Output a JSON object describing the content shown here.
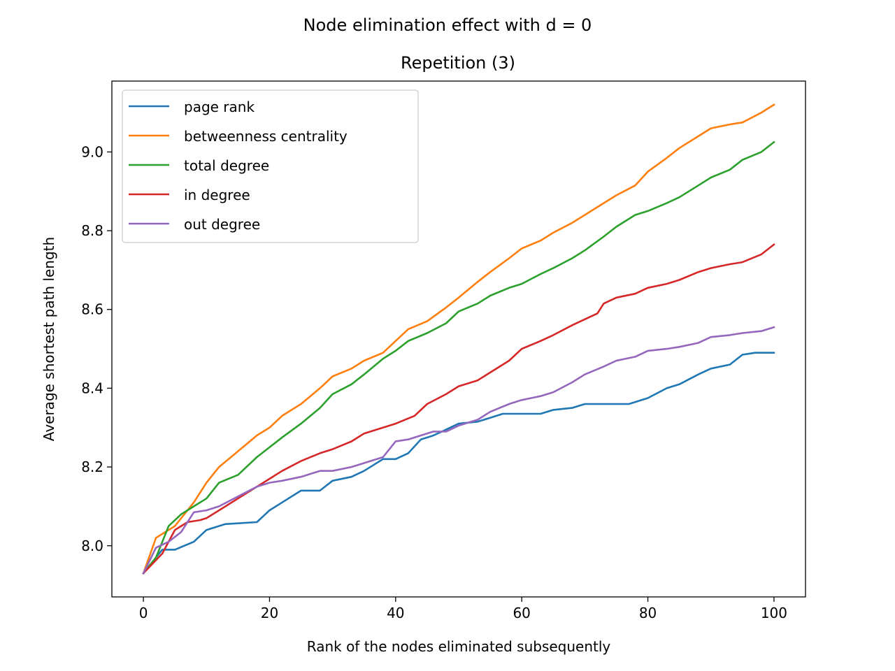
{
  "chart_data": {
    "type": "line",
    "suptitle": "Node elimination effect with d = 0",
    "title": "Repetition (3)",
    "xlabel": "Rank of the nodes eliminated subsequently",
    "ylabel": "Average shortest path length",
    "xlim": [
      -5,
      105
    ],
    "ylim": [
      7.87,
      9.18
    ],
    "xticks": [
      0,
      20,
      40,
      60,
      80,
      100
    ],
    "xtick_labels": [
      "0",
      "20",
      "40",
      "60",
      "80",
      "100"
    ],
    "yticks": [
      8.0,
      8.2,
      8.4,
      8.6,
      8.8,
      9.0
    ],
    "ytick_labels": [
      "8.0",
      "8.2",
      "8.4",
      "8.6",
      "8.8",
      "9.0"
    ],
    "grid": false,
    "legend_position": "upper left",
    "series_anchors_note_x": [
      0,
      5,
      10,
      15,
      20,
      25,
      30,
      35,
      40,
      45,
      50,
      55,
      60,
      65,
      70,
      75,
      80,
      85,
      90,
      95,
      100
    ],
    "series": [
      {
        "name": "page rank",
        "color": "#1f77b4",
        "x": [
          0,
          3,
          5,
          8,
          10,
          13,
          18,
          20,
          22,
          25,
          28,
          30,
          33,
          35,
          38,
          40,
          42,
          44,
          46,
          48,
          50,
          53,
          55,
          57,
          60,
          63,
          65,
          68,
          70,
          73,
          75,
          77,
          80,
          83,
          85,
          88,
          90,
          93,
          95,
          97,
          100
        ],
        "y": [
          7.93,
          7.99,
          7.99,
          8.01,
          8.04,
          8.055,
          8.06,
          8.09,
          8.11,
          8.14,
          8.14,
          8.165,
          8.175,
          8.19,
          8.22,
          8.22,
          8.235,
          8.27,
          8.28,
          8.295,
          8.31,
          8.315,
          8.325,
          8.335,
          8.335,
          8.335,
          8.345,
          8.35,
          8.36,
          8.36,
          8.36,
          8.36,
          8.375,
          8.4,
          8.41,
          8.435,
          8.45,
          8.46,
          8.485,
          8.49,
          8.49
        ]
      },
      {
        "name": "betweenness centrality",
        "color": "#ff7f0e",
        "x": [
          0,
          2,
          4,
          5,
          8,
          10,
          12,
          15,
          18,
          20,
          22,
          25,
          28,
          30,
          33,
          35,
          38,
          40,
          42,
          45,
          48,
          50,
          53,
          55,
          58,
          60,
          63,
          65,
          68,
          70,
          73,
          75,
          78,
          80,
          83,
          85,
          88,
          90,
          93,
          95,
          98,
          100
        ],
        "y": [
          7.93,
          8.02,
          8.04,
          8.05,
          8.11,
          8.16,
          8.2,
          8.24,
          8.28,
          8.3,
          8.33,
          8.36,
          8.4,
          8.43,
          8.45,
          8.47,
          8.49,
          8.52,
          8.55,
          8.57,
          8.605,
          8.63,
          8.67,
          8.695,
          8.73,
          8.755,
          8.775,
          8.795,
          8.82,
          8.84,
          8.87,
          8.89,
          8.915,
          8.95,
          8.985,
          9.01,
          9.04,
          9.06,
          9.07,
          9.075,
          9.1,
          9.12
        ]
      },
      {
        "name": "total degree",
        "color": "#2ca02c",
        "x": [
          0,
          2,
          4,
          6,
          8,
          10,
          12,
          15,
          18,
          20,
          22,
          25,
          28,
          30,
          33,
          35,
          38,
          40,
          42,
          45,
          48,
          50,
          53,
          55,
          58,
          60,
          63,
          65,
          68,
          70,
          73,
          75,
          78,
          80,
          83,
          85,
          88,
          90,
          93,
          95,
          98,
          100
        ],
        "y": [
          7.93,
          7.97,
          8.05,
          8.08,
          8.1,
          8.12,
          8.16,
          8.18,
          8.225,
          8.25,
          8.275,
          8.31,
          8.35,
          8.385,
          8.41,
          8.435,
          8.475,
          8.495,
          8.52,
          8.54,
          8.565,
          8.595,
          8.615,
          8.635,
          8.655,
          8.665,
          8.69,
          8.705,
          8.73,
          8.75,
          8.785,
          8.81,
          8.84,
          8.85,
          8.87,
          8.885,
          8.915,
          8.935,
          8.955,
          8.98,
          9.0,
          9.025
        ]
      },
      {
        "name": "in degree",
        "color": "#d62728",
        "x": [
          0,
          3,
          5,
          7,
          9,
          10,
          12,
          15,
          18,
          20,
          22,
          25,
          28,
          30,
          33,
          35,
          38,
          40,
          43,
          45,
          48,
          50,
          53,
          55,
          58,
          60,
          63,
          65,
          68,
          70,
          72,
          73,
          75,
          78,
          80,
          83,
          85,
          88,
          90,
          93,
          95,
          98,
          100
        ],
        "y": [
          7.93,
          7.98,
          8.04,
          8.06,
          8.065,
          8.07,
          8.09,
          8.12,
          8.15,
          8.17,
          8.19,
          8.215,
          8.235,
          8.245,
          8.265,
          8.285,
          8.3,
          8.31,
          8.33,
          8.36,
          8.385,
          8.405,
          8.42,
          8.44,
          8.47,
          8.5,
          8.52,
          8.535,
          8.56,
          8.575,
          8.59,
          8.615,
          8.63,
          8.64,
          8.655,
          8.665,
          8.675,
          8.695,
          8.705,
          8.715,
          8.72,
          8.74,
          8.765
        ]
      },
      {
        "name": "out degree",
        "color": "#9467bd",
        "x": [
          0,
          2,
          4,
          6,
          8,
          10,
          12,
          15,
          18,
          20,
          22,
          25,
          28,
          30,
          33,
          35,
          38,
          40,
          42,
          44,
          46,
          48,
          50,
          53,
          55,
          58,
          60,
          63,
          65,
          68,
          70,
          73,
          75,
          78,
          80,
          83,
          85,
          88,
          90,
          93,
          95,
          98,
          100
        ],
        "y": [
          7.93,
          7.995,
          8.01,
          8.035,
          8.085,
          8.09,
          8.1,
          8.125,
          8.15,
          8.16,
          8.165,
          8.175,
          8.19,
          8.19,
          8.2,
          8.21,
          8.225,
          8.265,
          8.27,
          8.28,
          8.29,
          8.29,
          8.305,
          8.32,
          8.34,
          8.36,
          8.37,
          8.38,
          8.39,
          8.415,
          8.435,
          8.455,
          8.47,
          8.48,
          8.495,
          8.5,
          8.505,
          8.515,
          8.53,
          8.535,
          8.54,
          8.545,
          8.555
        ]
      }
    ]
  }
}
